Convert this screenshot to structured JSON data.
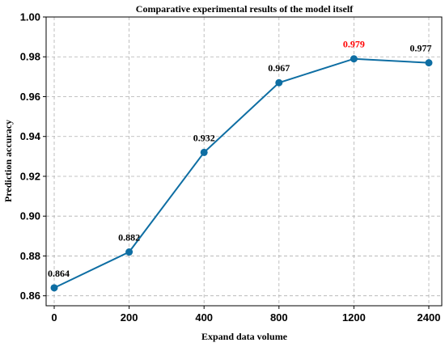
{
  "chart_data": {
    "type": "line",
    "title": "Comparative experimental results of the model itself",
    "xlabel": "Expand data volume",
    "ylabel": "Prediction accuracy",
    "categories": [
      "0",
      "200",
      "400",
      "800",
      "1200",
      "2400"
    ],
    "series": [
      {
        "values": [
          0.864,
          0.882,
          0.932,
          0.967,
          0.979,
          0.977
        ]
      }
    ],
    "data_labels": [
      "0.864",
      "0.882",
      "0.932",
      "0.967",
      "0.979",
      "0.977"
    ],
    "highlight_index": 4,
    "ylim": [
      0.855,
      1.0
    ],
    "yticks": [
      "0.86",
      "0.88",
      "0.90",
      "0.92",
      "0.94",
      "0.96",
      "0.98",
      "1.00"
    ],
    "ytick_values": [
      0.86,
      0.88,
      0.9,
      0.92,
      0.94,
      0.96,
      0.98,
      1.0
    ],
    "grid": true,
    "colors": {
      "line": "#0e6ea3",
      "marker": "#0e6ea3",
      "label": "#000000",
      "highlight_label": "#ff0000",
      "grid": "#b0b0b0"
    }
  }
}
